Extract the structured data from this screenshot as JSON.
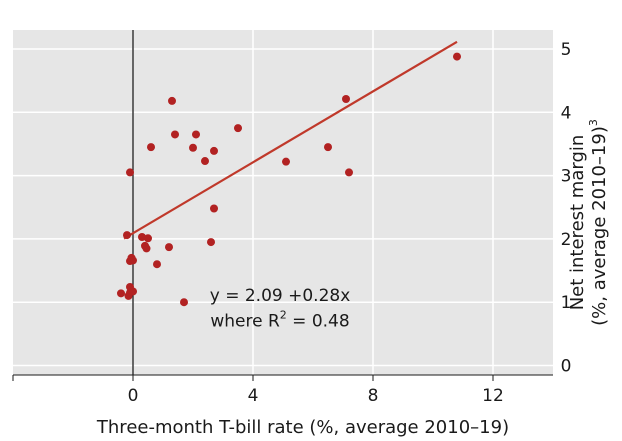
{
  "chart_data": {
    "type": "scatter",
    "title": "",
    "xlabel": "Three-month T-bill rate (%, average 2010–19)",
    "ylabel": "Net interest margin",
    "ylabel_line2": "(%, average 2010–19)",
    "ylabel_sup": "3",
    "xlim": [
      -4,
      14
    ],
    "ylim": [
      -0.15,
      5.3
    ],
    "xticks": [
      0,
      4,
      8,
      12
    ],
    "yticks": [
      0,
      1,
      2,
      3,
      4,
      5
    ],
    "grid": true,
    "y_axis_side": "right",
    "zero_line": true,
    "colors": {
      "points": "#b22222",
      "fit": "#c0392b",
      "plot_bg": "#e6e6e6",
      "grid": "#ffffff"
    },
    "series": [
      {
        "points": [
          [
            -0.4,
            1.14
          ],
          [
            -0.15,
            1.1
          ],
          [
            -0.1,
            1.15
          ],
          [
            -0.1,
            1.24
          ],
          [
            0.0,
            1.17
          ],
          [
            -0.2,
            2.06
          ],
          [
            -0.1,
            1.65
          ],
          [
            -0.05,
            1.7
          ],
          [
            0.0,
            1.66
          ],
          [
            -0.1,
            3.05
          ],
          [
            0.3,
            2.03
          ],
          [
            0.4,
            1.89
          ],
          [
            0.45,
            1.85
          ],
          [
            0.5,
            2.01
          ],
          [
            0.6,
            3.45
          ],
          [
            0.8,
            1.6
          ],
          [
            1.2,
            1.87
          ],
          [
            1.3,
            4.18
          ],
          [
            1.4,
            3.65
          ],
          [
            1.7,
            1.0
          ],
          [
            2.0,
            3.44
          ],
          [
            2.1,
            3.65
          ],
          [
            2.4,
            3.23
          ],
          [
            2.6,
            1.95
          ],
          [
            2.7,
            3.39
          ],
          [
            2.7,
            2.48
          ],
          [
            3.5,
            3.75
          ],
          [
            5.1,
            3.22
          ],
          [
            6.5,
            3.45
          ],
          [
            7.1,
            4.21
          ],
          [
            7.2,
            3.05
          ],
          [
            10.8,
            4.88
          ]
        ]
      }
    ],
    "fit": {
      "intercept": 2.09,
      "slope": 0.28,
      "x_range": [
        -0.3,
        10.8
      ]
    },
    "annotation": {
      "line1": "y = 2.09 +0.28x",
      "line2_prefix": "where R",
      "line2_sup": "2",
      "line2_suffix": " = 0.48"
    }
  }
}
